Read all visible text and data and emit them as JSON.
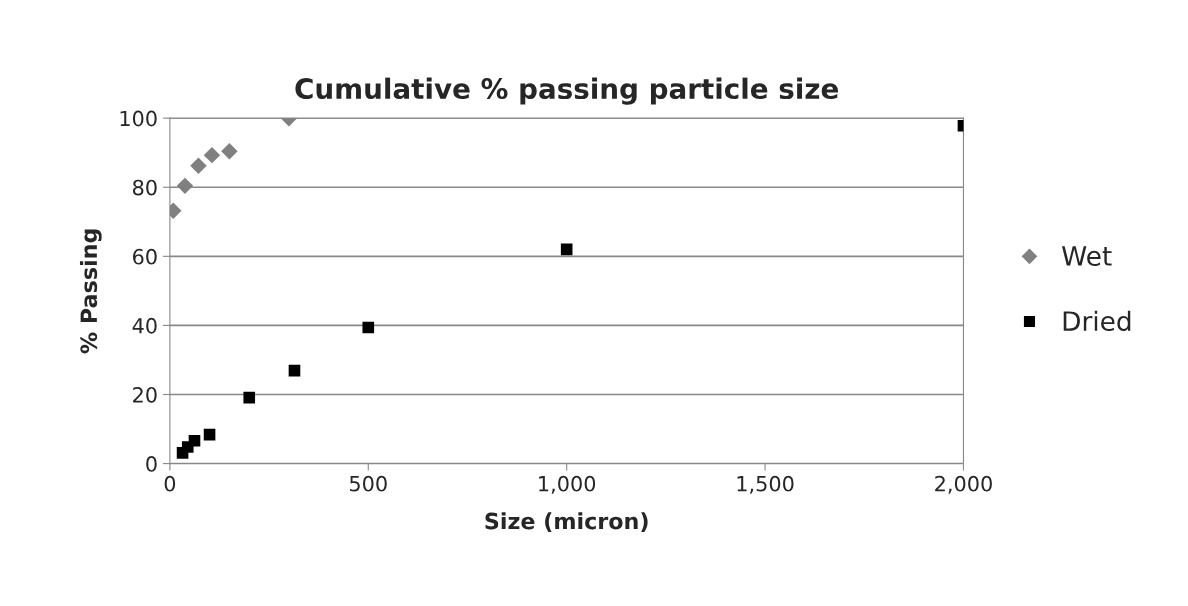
{
  "chart_data": {
    "type": "scatter",
    "title": "Cumulative % passing particle size",
    "xlabel": "Size (micron)",
    "ylabel": "% Passing",
    "series": [
      {
        "name": "Wet",
        "color": "#808080",
        "marker": "diamond",
        "x": [
          8.5,
          38,
          72,
          106,
          150,
          300
        ],
        "values": [
          73.2,
          80.4,
          86.2,
          89.3,
          90.4,
          100
        ]
      },
      {
        "name": "Dried",
        "color": "#000000",
        "marker": "square",
        "x": [
          32,
          45,
          62,
          100,
          200,
          314,
          500,
          1000,
          2000
        ],
        "values": [
          3.1,
          4.8,
          6.6,
          8.4,
          19.1,
          26.9,
          39.4,
          62,
          97.8
        ]
      }
    ],
    "xlim": [
      0,
      2000
    ],
    "xticks": [
      0,
      {
        "value": 500,
        "label": "500"
      },
      {
        "value": 1000,
        "label": "1,000"
      },
      {
        "value": 1500,
        "label": "1,500"
      },
      {
        "value": 2000,
        "label": "2,000"
      }
    ],
    "ylim": [
      0,
      100
    ],
    "yticks": [
      0,
      20,
      40,
      60,
      80,
      100
    ],
    "grid": "y",
    "legend": "right"
  }
}
